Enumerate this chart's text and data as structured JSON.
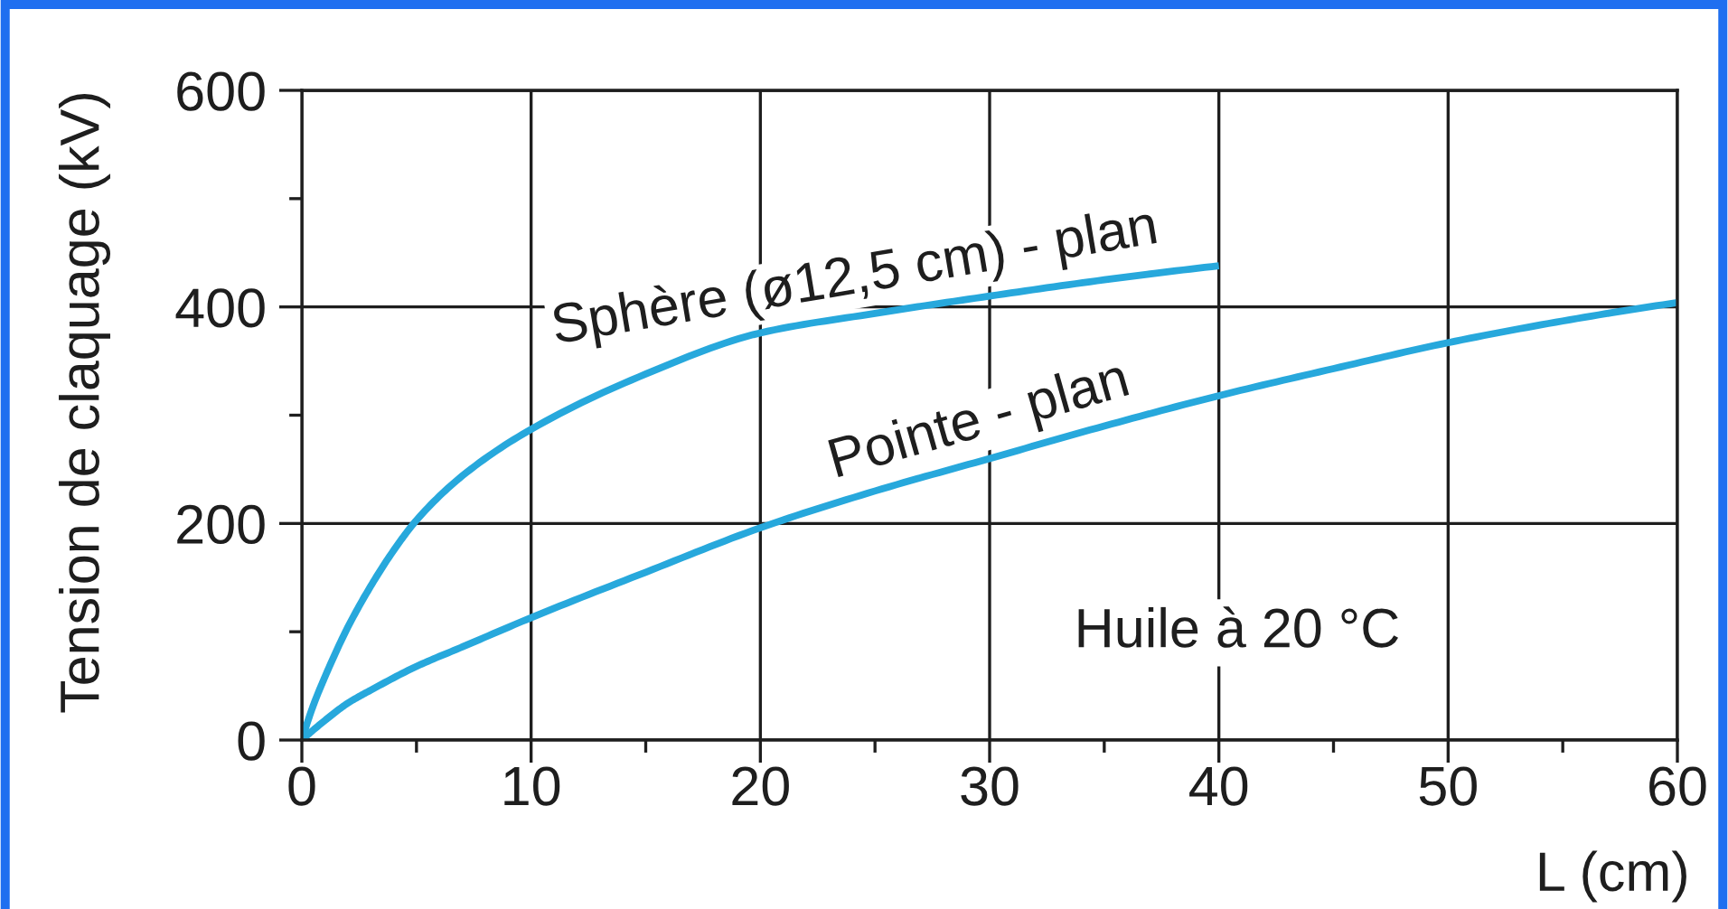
{
  "chart_data": {
    "type": "line",
    "xlabel": "L (cm)",
    "ylabel": "Tension de claquage (kV)",
    "annotations": [
      "Huile à 20 °C"
    ],
    "xlim": [
      0,
      60
    ],
    "ylim": [
      0,
      600
    ],
    "xticks": [
      0,
      {
        "value": 5,
        "label": null
      },
      10,
      {
        "value": 15,
        "label": null
      },
      20,
      {
        "value": 25,
        "label": null
      },
      30,
      {
        "value": 35,
        "label": null
      },
      40,
      {
        "value": 45,
        "label": null
      },
      50,
      {
        "value": 55,
        "label": null
      },
      60
    ],
    "yticks": [
      0,
      {
        "value": 100,
        "label": null
      },
      200,
      {
        "value": 300,
        "label": null
      },
      400,
      {
        "value": 500,
        "label": null
      },
      600
    ],
    "grid": true,
    "series": [
      {
        "name": "Sphère (ø12,5 cm) - plan",
        "color": "#27a8dc",
        "x": [
          0,
          0.5,
          1,
          2,
          3,
          4,
          5,
          7,
          10,
          15,
          20,
          25,
          30,
          35,
          40
        ],
        "values": [
          0,
          32,
          58,
          104,
          142,
          175,
          203,
          244,
          287,
          338,
          376,
          394,
          410,
          425,
          438
        ]
      },
      {
        "name": "Pointe - plan",
        "color": "#27a8dc",
        "x": [
          0,
          1,
          2,
          3,
          5,
          7,
          10,
          15,
          20,
          25,
          30,
          35,
          40,
          45,
          50,
          55,
          60
        ],
        "values": [
          0,
          18,
          34,
          46,
          68,
          86,
          113,
          155,
          196,
          230,
          260,
          290,
          318,
          343,
          367,
          387,
          404
        ]
      }
    ]
  }
}
